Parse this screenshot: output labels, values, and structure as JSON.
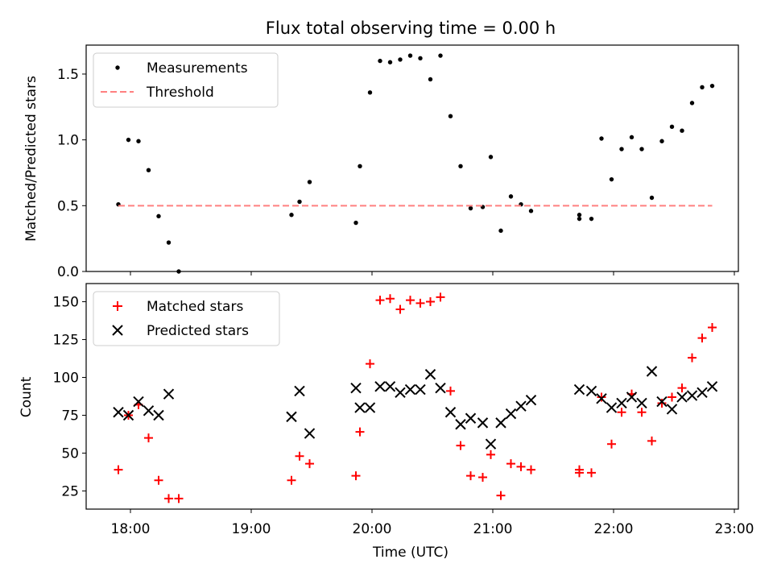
{
  "chart_data": {
    "title": "Flux total observing time = 0.00 h",
    "xlabel": "Time (UTC)",
    "x_ticks": [
      "18:00",
      "19:00",
      "20:00",
      "21:00",
      "22:00",
      "23:00"
    ],
    "xlim": [
      "17:38",
      "23:02"
    ],
    "panels": [
      {
        "type": "scatter",
        "ylabel": "Matched/Predicted stars",
        "ylim": [
          0,
          1.72
        ],
        "y_ticks": [
          "0.0",
          "0.5",
          "1.0",
          "1.5"
        ],
        "legend": {
          "position": "upper-left",
          "labels": [
            "Measurements",
            "Threshold"
          ]
        },
        "series": [
          {
            "name": "Measurements",
            "marker": "dot",
            "color": "#000000",
            "points": [
              [
                "17:54",
                0.51
              ],
              [
                "17:59",
                1.0
              ],
              [
                "18:04",
                0.99
              ],
              [
                "18:09",
                0.77
              ],
              [
                "18:14",
                0.42
              ],
              [
                "18:19",
                0.22
              ],
              [
                "18:24",
                0.0
              ],
              [
                "19:20",
                0.43
              ],
              [
                "19:24",
                0.53
              ],
              [
                "19:29",
                0.68
              ],
              [
                "19:52",
                0.37
              ],
              [
                "19:54",
                0.8
              ],
              [
                "19:59",
                1.36
              ],
              [
                "20:04",
                1.6
              ],
              [
                "20:09",
                1.59
              ],
              [
                "20:14",
                1.61
              ],
              [
                "20:19",
                1.64
              ],
              [
                "20:24",
                1.62
              ],
              [
                "20:29",
                1.46
              ],
              [
                "20:34",
                1.64
              ],
              [
                "20:39",
                1.18
              ],
              [
                "20:44",
                0.8
              ],
              [
                "20:49",
                0.48
              ],
              [
                "20:55",
                0.49
              ],
              [
                "20:59",
                0.87
              ],
              [
                "21:04",
                0.31
              ],
              [
                "21:09",
                0.57
              ],
              [
                "21:14",
                0.51
              ],
              [
                "21:19",
                0.46
              ],
              [
                "21:43",
                0.43
              ],
              [
                "21:43",
                0.4
              ],
              [
                "21:49",
                0.4
              ],
              [
                "21:54",
                1.01
              ],
              [
                "21:59",
                0.7
              ],
              [
                "22:04",
                0.93
              ],
              [
                "22:09",
                1.02
              ],
              [
                "22:14",
                0.93
              ],
              [
                "22:19",
                0.56
              ],
              [
                "22:24",
                0.99
              ],
              [
                "22:29",
                1.1
              ],
              [
                "22:34",
                1.07
              ],
              [
                "22:39",
                1.28
              ],
              [
                "22:44",
                1.4
              ],
              [
                "22:49",
                1.41
              ]
            ]
          },
          {
            "name": "Threshold",
            "type": "line",
            "style": "dashed",
            "color": "#ff8080",
            "points": [
              [
                "17:54",
                0.5
              ],
              [
                "22:49",
                0.5
              ]
            ]
          }
        ]
      },
      {
        "type": "scatter",
        "ylabel": "Count",
        "ylim": [
          13,
          162
        ],
        "y_ticks": [
          "25",
          "50",
          "75",
          "100",
          "125",
          "150"
        ],
        "legend": {
          "position": "upper-left",
          "labels": [
            "Matched stars",
            "Predicted stars"
          ]
        },
        "series": [
          {
            "name": "Matched stars",
            "marker": "plus",
            "color": "#ff0000",
            "points": [
              [
                "17:54",
                39
              ],
              [
                "17:59",
                75
              ],
              [
                "18:04",
                82
              ],
              [
                "18:09",
                60
              ],
              [
                "18:14",
                32
              ],
              [
                "18:19",
                20
              ],
              [
                "18:24",
                20
              ],
              [
                "19:20",
                32
              ],
              [
                "19:24",
                48
              ],
              [
                "19:29",
                43
              ],
              [
                "19:52",
                35
              ],
              [
                "19:54",
                64
              ],
              [
                "19:59",
                109
              ],
              [
                "20:04",
                151
              ],
              [
                "20:09",
                152
              ],
              [
                "20:14",
                145
              ],
              [
                "20:19",
                151
              ],
              [
                "20:24",
                149
              ],
              [
                "20:29",
                150
              ],
              [
                "20:34",
                153
              ],
              [
                "20:39",
                91
              ],
              [
                "20:44",
                55
              ],
              [
                "20:49",
                35
              ],
              [
                "20:55",
                34
              ],
              [
                "20:59",
                49
              ],
              [
                "21:04",
                22
              ],
              [
                "21:09",
                43
              ],
              [
                "21:14",
                41
              ],
              [
                "21:19",
                39
              ],
              [
                "21:43",
                39
              ],
              [
                "21:43",
                37
              ],
              [
                "21:49",
                37
              ],
              [
                "21:54",
                87
              ],
              [
                "21:59",
                56
              ],
              [
                "22:04",
                77
              ],
              [
                "22:09",
                89
              ],
              [
                "22:14",
                77
              ],
              [
                "22:19",
                58
              ],
              [
                "22:24",
                83
              ],
              [
                "22:29",
                87
              ],
              [
                "22:34",
                93
              ],
              [
                "22:39",
                113
              ],
              [
                "22:44",
                126
              ],
              [
                "22:49",
                133
              ]
            ]
          },
          {
            "name": "Predicted stars",
            "marker": "x",
            "color": "#000000",
            "points": [
              [
                "17:54",
                77
              ],
              [
                "17:59",
                75
              ],
              [
                "18:04",
                84
              ],
              [
                "18:09",
                78
              ],
              [
                "18:14",
                75
              ],
              [
                "18:19",
                89
              ],
              [
                "19:20",
                74
              ],
              [
                "19:24",
                91
              ],
              [
                "19:29",
                63
              ],
              [
                "19:52",
                93
              ],
              [
                "19:54",
                80
              ],
              [
                "19:59",
                80
              ],
              [
                "20:04",
                94
              ],
              [
                "20:09",
                94
              ],
              [
                "20:14",
                90
              ],
              [
                "20:19",
                92
              ],
              [
                "20:24",
                92
              ],
              [
                "20:29",
                102
              ],
              [
                "20:34",
                93
              ],
              [
                "20:39",
                77
              ],
              [
                "20:44",
                69
              ],
              [
                "20:49",
                73
              ],
              [
                "20:55",
                70
              ],
              [
                "20:59",
                56
              ],
              [
                "21:04",
                70
              ],
              [
                "21:09",
                76
              ],
              [
                "21:14",
                81
              ],
              [
                "21:19",
                85
              ],
              [
                "21:43",
                92
              ],
              [
                "21:49",
                91
              ],
              [
                "21:54",
                86
              ],
              [
                "21:59",
                80
              ],
              [
                "22:04",
                83
              ],
              [
                "22:09",
                87
              ],
              [
                "22:14",
                83
              ],
              [
                "22:19",
                104
              ],
              [
                "22:24",
                84
              ],
              [
                "22:29",
                79
              ],
              [
                "22:34",
                87
              ],
              [
                "22:39",
                88
              ],
              [
                "22:44",
                90
              ],
              [
                "22:49",
                94
              ]
            ]
          }
        ]
      }
    ]
  }
}
